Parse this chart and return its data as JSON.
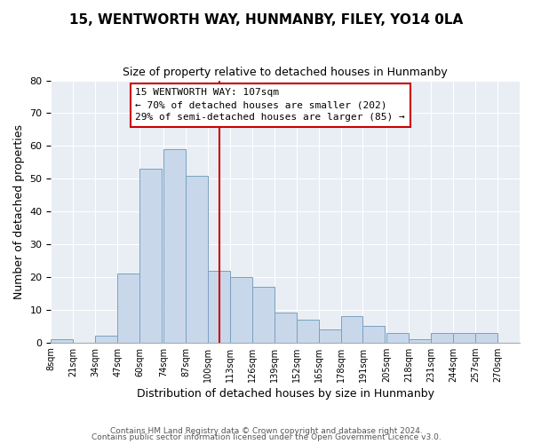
{
  "title": "15, WENTWORTH WAY, HUNMANBY, FILEY, YO14 0LA",
  "subtitle": "Size of property relative to detached houses in Hunmanby",
  "xlabel": "Distribution of detached houses by size in Hunmanby",
  "ylabel": "Number of detached properties",
  "bar_left_edges": [
    8,
    21,
    34,
    47,
    60,
    74,
    87,
    100,
    113,
    126,
    139,
    152,
    165,
    178,
    191,
    205,
    218,
    231,
    244,
    257
  ],
  "bar_heights": [
    1,
    0,
    2,
    21,
    53,
    59,
    51,
    22,
    20,
    17,
    9,
    7,
    4,
    8,
    5,
    3,
    1,
    3,
    3,
    3
  ],
  "bin_width": 13,
  "bar_color": "#c8d8ea",
  "bar_edge_color": "#7aA0c0",
  "vline_x": 107,
  "vline_color": "#cc0000",
  "annotation_line1": "15 WENTWORTH WAY: 107sqm",
  "annotation_line2": "← 70% of detached houses are smaller (202)",
  "annotation_line3": "29% of semi-detached houses are larger (85) →",
  "ylim": [
    0,
    80
  ],
  "tick_labels": [
    "8sqm",
    "21sqm",
    "34sqm",
    "47sqm",
    "60sqm",
    "74sqm",
    "87sqm",
    "100sqm",
    "113sqm",
    "126sqm",
    "139sqm",
    "152sqm",
    "165sqm",
    "178sqm",
    "191sqm",
    "205sqm",
    "218sqm",
    "231sqm",
    "244sqm",
    "257sqm",
    "270sqm"
  ],
  "tick_positions": [
    8,
    21,
    34,
    47,
    60,
    74,
    87,
    100,
    113,
    126,
    139,
    152,
    165,
    178,
    191,
    205,
    218,
    231,
    244,
    257,
    270
  ],
  "footer_line1": "Contains HM Land Registry data © Crown copyright and database right 2024.",
  "footer_line2": "Contains public sector information licensed under the Open Government Licence v3.0.",
  "background_color": "#ffffff",
  "plot_bg_color": "#e8eef4",
  "grid_color": "#ffffff"
}
